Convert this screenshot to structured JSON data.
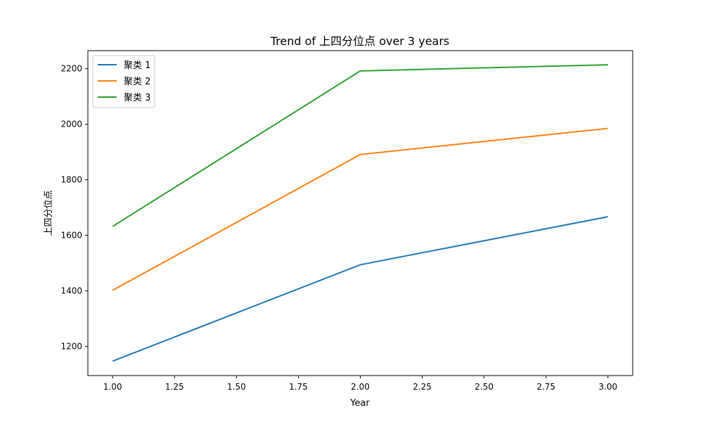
{
  "chart_data": {
    "type": "line",
    "title": "Trend of 上四分位点 over 3 years",
    "xlabel": "Year",
    "ylabel": "上四分位点",
    "xlim": [
      0.9,
      3.1
    ],
    "ylim": [
      1095,
      2265
    ],
    "xticks": [
      "1.00",
      "1.25",
      "1.50",
      "1.75",
      "2.00",
      "2.25",
      "2.50",
      "2.75",
      "3.00"
    ],
    "yticks": [
      "1200",
      "1400",
      "1600",
      "1800",
      "2000",
      "2200"
    ],
    "grid": false,
    "legend_position": "top-left",
    "x": [
      1,
      2,
      3
    ],
    "series": [
      {
        "name": "聚类 1",
        "color": "#1f77b4",
        "values": [
          1147,
          1494,
          1667
        ]
      },
      {
        "name": "聚类 2",
        "color": "#ff7f0e",
        "values": [
          1402,
          1891,
          1985
        ]
      },
      {
        "name": "聚类 3",
        "color": "#2ca02c",
        "values": [
          1632,
          2192,
          2214
        ]
      }
    ]
  }
}
